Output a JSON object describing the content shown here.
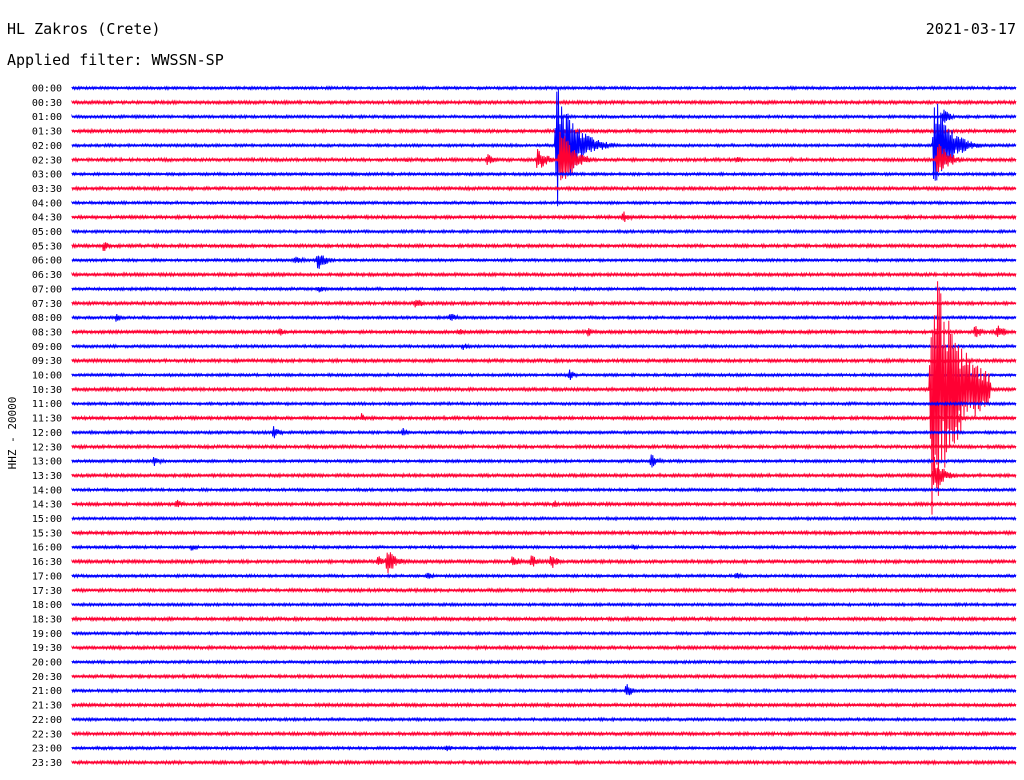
{
  "header": {
    "station": "HL Zakros (Crete)",
    "date": "2021-03-17",
    "filter": "Applied filter: WWSSN-SP",
    "channel_label": "HHZ - 20000"
  },
  "colors": {
    "even_rows": "#0000ff",
    "odd_rows": "#ff0033"
  },
  "chart_data": {
    "type": "line",
    "title": "HL Zakros (Crete)",
    "subtitle": "Applied filter: WWSSN-SP",
    "date": "2021-03-17",
    "ylabel": "HHZ - 20000",
    "xlabel": "",
    "row_duration_minutes": 30,
    "grid": false,
    "rows": [
      "00:00",
      "00:30",
      "01:00",
      "01:30",
      "02:00",
      "02:30",
      "03:00",
      "03:30",
      "04:00",
      "04:30",
      "05:00",
      "05:30",
      "06:00",
      "06:30",
      "07:00",
      "07:30",
      "08:00",
      "08:30",
      "09:00",
      "09:30",
      "10:00",
      "10:30",
      "11:00",
      "11:30",
      "12:00",
      "12:30",
      "13:00",
      "13:30",
      "14:00",
      "14:30",
      "15:00",
      "15:30",
      "16:00",
      "16:30",
      "17:00",
      "17:30",
      "18:00",
      "18:30",
      "19:00",
      "19:30",
      "20:00",
      "20:30",
      "21:00",
      "21:30",
      "22:00",
      "22:30",
      "23:00",
      "23:30"
    ],
    "events": [
      {
        "row": "01:00",
        "minute": 27.7,
        "amplitude": 8
      },
      {
        "row": "01:30",
        "minute": 10.8,
        "amplitude": 2
      },
      {
        "row": "02:00",
        "minute": 15.4,
        "amplitude": 70
      },
      {
        "row": "02:00",
        "minute": 27.4,
        "amplitude": 55
      },
      {
        "row": "02:30",
        "minute": 10.6,
        "amplitude": 3
      },
      {
        "row": "02:30",
        "minute": 13.2,
        "amplitude": 7
      },
      {
        "row": "02:30",
        "minute": 14.8,
        "amplitude": 15
      },
      {
        "row": "02:30",
        "minute": 15.5,
        "amplitude": 40
      },
      {
        "row": "02:30",
        "minute": 21.1,
        "amplitude": 4
      },
      {
        "row": "02:30",
        "minute": 22.8,
        "amplitude": 3
      },
      {
        "row": "02:30",
        "minute": 27.5,
        "amplitude": 25
      },
      {
        "row": "04:30",
        "minute": 17.5,
        "amplitude": 7
      },
      {
        "row": "04:30",
        "minute": 26.5,
        "amplitude": 3
      },
      {
        "row": "05:30",
        "minute": 1.0,
        "amplitude": 7
      },
      {
        "row": "06:00",
        "minute": 7.1,
        "amplitude": 6
      },
      {
        "row": "06:00",
        "minute": 7.8,
        "amplitude": 12
      },
      {
        "row": "07:00",
        "minute": 7.8,
        "amplitude": 5
      },
      {
        "row": "07:30",
        "minute": 10.9,
        "amplitude": 7
      },
      {
        "row": "08:00",
        "minute": 1.4,
        "amplitude": 5
      },
      {
        "row": "08:00",
        "minute": 12.0,
        "amplitude": 6
      },
      {
        "row": "08:30",
        "minute": 6.6,
        "amplitude": 5
      },
      {
        "row": "08:30",
        "minute": 12.3,
        "amplitude": 5
      },
      {
        "row": "08:30",
        "minute": 16.4,
        "amplitude": 5
      },
      {
        "row": "08:30",
        "minute": 28.7,
        "amplitude": 8
      },
      {
        "row": "08:30",
        "minute": 29.4,
        "amplitude": 9
      },
      {
        "row": "09:00",
        "minute": 12.4,
        "amplitude": 5
      },
      {
        "row": "10:00",
        "minute": 15.8,
        "amplitude": 6
      },
      {
        "row": "10:30",
        "minute": 27.3,
        "amplitude": 140
      },
      {
        "row": "11:30",
        "minute": 9.2,
        "amplitude": 5
      },
      {
        "row": "11:30",
        "minute": 28.2,
        "amplitude": 5
      },
      {
        "row": "12:00",
        "minute": 6.4,
        "amplitude": 7
      },
      {
        "row": "12:00",
        "minute": 10.5,
        "amplitude": 5
      },
      {
        "row": "13:00",
        "minute": 2.6,
        "amplitude": 6
      },
      {
        "row": "13:00",
        "minute": 18.4,
        "amplitude": 8
      },
      {
        "row": "13:30",
        "minute": 27.4,
        "amplitude": 20
      },
      {
        "row": "14:30",
        "minute": 3.3,
        "amplitude": 6
      },
      {
        "row": "14:30",
        "minute": 15.3,
        "amplitude": 5
      },
      {
        "row": "16:00",
        "minute": 3.8,
        "amplitude": 5
      },
      {
        "row": "16:00",
        "minute": 17.8,
        "amplitude": 4
      },
      {
        "row": "16:30",
        "minute": 9.7,
        "amplitude": 7
      },
      {
        "row": "16:30",
        "minute": 10.0,
        "amplitude": 16
      },
      {
        "row": "16:30",
        "minute": 14.0,
        "amplitude": 7
      },
      {
        "row": "16:30",
        "minute": 14.6,
        "amplitude": 8
      },
      {
        "row": "16:30",
        "minute": 15.2,
        "amplitude": 9
      },
      {
        "row": "17:00",
        "minute": 11.3,
        "amplitude": 5
      },
      {
        "row": "17:00",
        "minute": 21.1,
        "amplitude": 5
      },
      {
        "row": "21:00",
        "minute": 17.6,
        "amplitude": 8
      },
      {
        "row": "23:00",
        "minute": 11.9,
        "amplitude": 4
      }
    ]
  }
}
